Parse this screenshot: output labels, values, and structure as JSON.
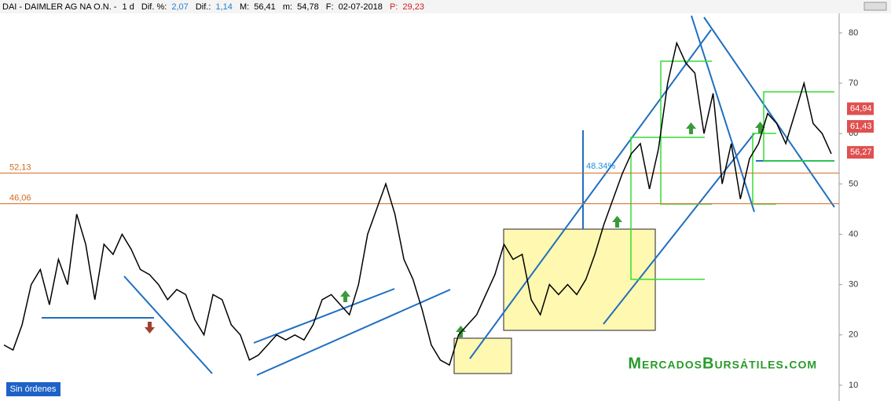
{
  "header": {
    "symbol": "DAI - DAIMLER AG NA O.N. -",
    "period": "1 d",
    "dif_pct_label": "Dif. %:",
    "dif_pct": "2,07",
    "dif_label": "Dif.:",
    "dif": "1,14",
    "max_label": "M:",
    "max": "56,41",
    "min_label": "m:",
    "min": "54,78",
    "date_label": "F:",
    "date": "02-07-2018",
    "price_label": "P:",
    "price": "29,23"
  },
  "watermark": "MercadosBursátiles.com",
  "button": "Sin órdenes",
  "chart_data": {
    "type": "line",
    "series": [
      {
        "name": "DAI",
        "color": "#000000",
        "values": [
          18,
          17,
          22,
          30,
          33,
          26,
          35,
          30,
          44,
          38,
          27,
          38,
          36,
          40,
          37,
          33,
          32,
          30,
          27,
          29,
          28,
          23,
          20,
          28,
          27,
          22,
          20,
          15,
          16,
          18,
          20,
          19,
          20,
          19,
          22,
          27,
          28,
          26,
          24,
          30,
          40,
          45,
          50,
          44,
          35,
          31,
          25,
          18,
          15,
          14,
          20,
          22,
          24,
          28,
          32,
          38,
          35,
          36,
          27,
          24,
          30,
          28,
          30,
          28,
          31,
          36,
          42,
          47,
          52,
          56,
          58,
          49,
          57,
          70,
          78,
          74,
          72,
          60,
          68,
          50,
          58,
          47,
          55,
          58,
          64,
          62,
          58,
          64,
          70,
          62,
          60,
          56
        ]
      }
    ],
    "ylim": [
      7.8,
      84.2
    ],
    "yticks": [
      10,
      20,
      30,
      40,
      50,
      60,
      70,
      80
    ],
    "hlines": [
      {
        "value": 52.13,
        "label": "52,13",
        "color": "#d2691e"
      },
      {
        "value": 46.06,
        "label": "46,06",
        "color": "#d2691e"
      }
    ],
    "price_tags": [
      {
        "value": 64.94,
        "label": "64,94",
        "color": "#e05050"
      },
      {
        "value": 61.43,
        "label": "61,43",
        "color": "#e05050"
      },
      {
        "value": 56.27,
        "label": "56,27",
        "color": "#e05050"
      }
    ],
    "annotation": "48.34%"
  }
}
